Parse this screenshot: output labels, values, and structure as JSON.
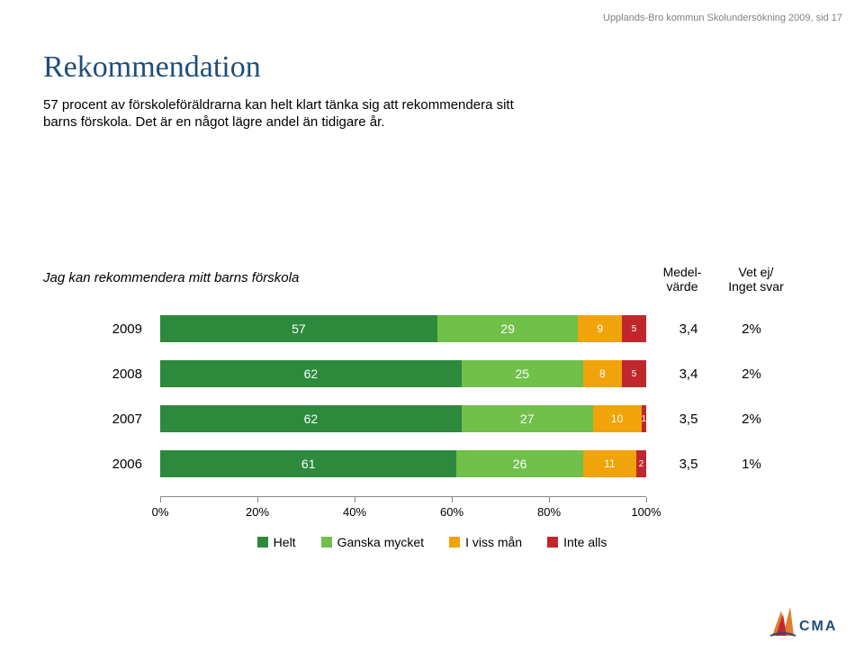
{
  "header_note": "Upplands-Bro kommun Skolundersökning 2009,  sid 17",
  "title": "Rekommendation",
  "description": "57 procent av förskoleföräldrarna kan helt klart tänka sig att rekommendera sitt barns förskola. Det är en något lägre andel än tidigare år.",
  "question": "Jag kan rekommendera mitt barns förskola",
  "columns": {
    "medel": "Medel-\nvärde",
    "vetej": "Vet ej/\nInget svar"
  },
  "chart": {
    "type": "stacked-bar-horizontal",
    "xlim": [
      0,
      100
    ],
    "xtick_step": 20,
    "xtick_labels": [
      "0%",
      "20%",
      "40%",
      "60%",
      "80%",
      "100%"
    ],
    "bar_background": "#ffffff",
    "colors": {
      "helt": "#2d8a3d",
      "ganska": "#70c04a",
      "iviss": "#f0a30a",
      "inte": "#c0272d"
    },
    "rows": [
      {
        "year": "2009",
        "values": [
          57,
          29,
          9,
          5
        ],
        "medel": "3,4",
        "vetej": "2%"
      },
      {
        "year": "2008",
        "values": [
          62,
          25,
          8,
          5
        ],
        "medel": "3,4",
        "vetej": "2%"
      },
      {
        "year": "2007",
        "values": [
          62,
          27,
          10,
          1
        ],
        "medel": "3,5",
        "vetej": "2%"
      },
      {
        "year": "2006",
        "values": [
          61,
          26,
          11,
          2
        ],
        "medel": "3,5",
        "vetej": "1%"
      }
    ],
    "legend": [
      {
        "label": "Helt",
        "color_key": "helt"
      },
      {
        "label": "Ganska mycket",
        "color_key": "ganska"
      },
      {
        "label": "I viss mån",
        "color_key": "iviss"
      },
      {
        "label": "Inte alls",
        "color_key": "inte"
      }
    ]
  },
  "logo": {
    "text": "CMA"
  }
}
